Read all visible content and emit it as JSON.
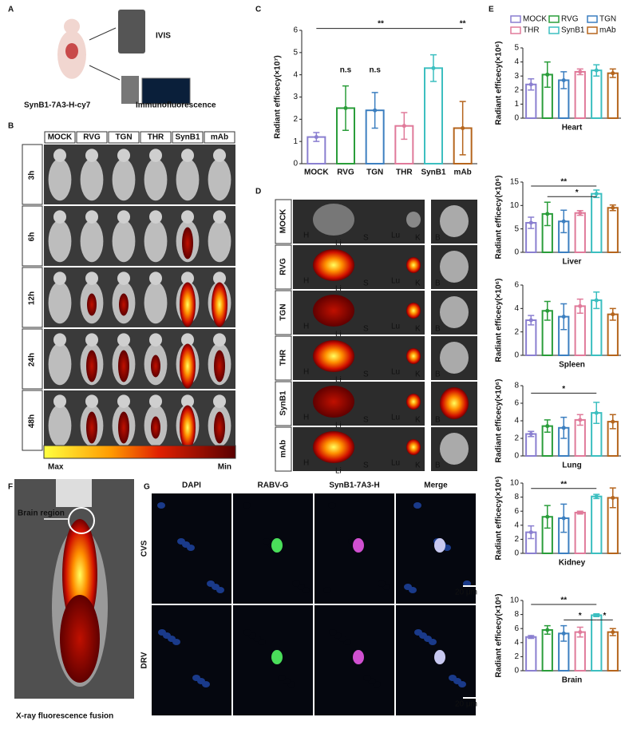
{
  "panels": {
    "A": {
      "label": "A",
      "instrument": "IVIS",
      "method": "Immunofluorescence",
      "probe": "SynB1-7A3-H-cy7"
    },
    "B": {
      "label": "B",
      "columns": [
        "MOCK",
        "RVG",
        "TGN",
        "THR",
        "SynB1",
        "mAb"
      ],
      "rows": [
        "3h",
        "6h",
        "12h",
        "24h",
        "48h"
      ],
      "scale": [
        "Max",
        "Min"
      ]
    },
    "C": {
      "label": "C"
    },
    "D": {
      "label": "D",
      "rows": [
        "MOCK",
        "RVG",
        "TGN",
        "THR",
        "SynB1",
        "mAb"
      ],
      "organs": [
        "H",
        "Li",
        "S",
        "Lu",
        "K",
        "B"
      ]
    },
    "E": {
      "label": "E",
      "legend": [
        {
          "name": "MOCK",
          "color": "#8a7fd0"
        },
        {
          "name": "RVG",
          "color": "#2a9d3a"
        },
        {
          "name": "TGN",
          "color": "#3c7fc0"
        },
        {
          "name": "THR",
          "color": "#e07a9a"
        },
        {
          "name": "SynB1",
          "color": "#3cbfc0"
        },
        {
          "name": "mAb",
          "color": "#b5651d"
        }
      ]
    },
    "F": {
      "label": "F",
      "region": "Brain region",
      "caption": "X-ray fluorescence fusion"
    },
    "G": {
      "label": "G",
      "columns": [
        "DAPI",
        "RABV-G",
        "SynB1-7A3-H",
        "Merge"
      ],
      "rows": [
        "CVS",
        "DRV"
      ],
      "scale_bar": "20 μm"
    }
  },
  "chart_data": [
    {
      "type": "bar",
      "ylabel": "Radiant efficecy(×10⁷)",
      "categories": [
        "MOCK",
        "RVG",
        "TGN",
        "THR",
        "SynB1",
        "mAb"
      ],
      "values": [
        1.2,
        2.5,
        2.4,
        1.7,
        4.3,
        1.6
      ],
      "errors": [
        0.2,
        1.0,
        0.8,
        0.6,
        0.6,
        1.2
      ],
      "colors": [
        "#8a7fd0",
        "#2a9d3a",
        "#3c7fc0",
        "#e07a9a",
        "#3cbfc0",
        "#b5651d"
      ],
      "ylim": [
        0,
        6
      ],
      "yticks": [
        0,
        1,
        2,
        3,
        4,
        5,
        6
      ],
      "annotations": [
        "n.s",
        "n.s",
        "**",
        "**"
      ]
    },
    {
      "type": "bar",
      "xlabel": "Heart",
      "ylabel": "Radiant efficecy(×10⁶)",
      "values": [
        2.4,
        3.1,
        2.7,
        3.3,
        3.4,
        3.2
      ],
      "errors": [
        0.4,
        0.9,
        0.6,
        0.2,
        0.4,
        0.3
      ],
      "ylim": [
        0,
        5
      ],
      "yticks": [
        0,
        1,
        2,
        3,
        4,
        5
      ],
      "annotations": []
    },
    {
      "type": "bar",
      "xlabel": "Liver",
      "ylabel": "Radiant efficecy(×10⁶)",
      "values": [
        6.3,
        8.2,
        6.6,
        8.4,
        12.5,
        9.5
      ],
      "errors": [
        1.2,
        2.5,
        2.4,
        0.5,
        0.8,
        0.6
      ],
      "ylim": [
        0,
        15
      ],
      "yticks": [
        0,
        5,
        10,
        15
      ],
      "annotations": [
        "**",
        "*"
      ]
    },
    {
      "type": "bar",
      "xlabel": "Spleen",
      "ylabel": "Radiant efficecy(×10⁶)",
      "values": [
        3.0,
        3.8,
        3.3,
        4.2,
        4.7,
        3.5
      ],
      "errors": [
        0.4,
        0.8,
        1.1,
        0.6,
        0.7,
        0.5
      ],
      "ylim": [
        0,
        6
      ],
      "yticks": [
        0,
        2,
        4,
        6
      ],
      "annotations": []
    },
    {
      "type": "bar",
      "xlabel": "Lung",
      "ylabel": "Radiant efficecy(×10⁶)",
      "values": [
        2.5,
        3.4,
        3.2,
        4.1,
        4.9,
        3.9
      ],
      "errors": [
        0.3,
        0.7,
        1.2,
        0.6,
        1.2,
        0.8
      ],
      "ylim": [
        0,
        8
      ],
      "yticks": [
        0,
        2,
        4,
        6,
        8
      ],
      "annotations": [
        "*"
      ]
    },
    {
      "type": "bar",
      "xlabel": "Kidney",
      "ylabel": "Radiant efficecy(×10⁶)",
      "values": [
        3.0,
        5.2,
        5.0,
        5.8,
        8.1,
        7.9
      ],
      "errors": [
        0.9,
        1.6,
        2.0,
        0.2,
        0.3,
        1.4
      ],
      "ylim": [
        0,
        10
      ],
      "yticks": [
        0,
        2,
        4,
        6,
        8,
        10
      ],
      "annotations": [
        "**"
      ]
    },
    {
      "type": "bar",
      "xlabel": "Brain",
      "ylabel": "Radiant efficecy(×10⁶)",
      "values": [
        4.8,
        5.8,
        5.3,
        5.5,
        7.9,
        5.5
      ],
      "errors": [
        0.2,
        0.6,
        1.1,
        0.7,
        0.2,
        0.5
      ],
      "ylim": [
        0,
        10
      ],
      "yticks": [
        0,
        2,
        4,
        6,
        8,
        10
      ],
      "annotations": [
        "**",
        "*",
        "*"
      ]
    }
  ]
}
